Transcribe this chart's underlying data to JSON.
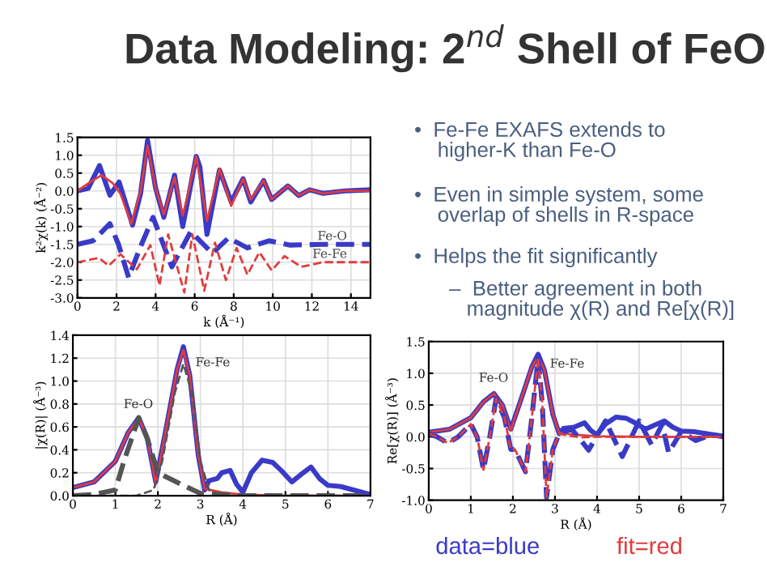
{
  "chart_data": [
    {
      "type": "line",
      "xlabel": "k (Å⁻¹)",
      "ylabel": "k²χ(k) (Å⁻²)",
      "xlim": [
        0,
        15
      ],
      "xticks": [
        0,
        2,
        4,
        6,
        8,
        10,
        12,
        14
      ],
      "ylim": [
        -3.0,
        1.5
      ],
      "yticks": [
        {
          "value": 1.5,
          "label": "1.5"
        },
        {
          "value": 1.0,
          "label": "1.0"
        },
        {
          "value": 0.5,
          "label": "0.5"
        },
        {
          "value": 0.0,
          "label": "0.0"
        },
        {
          "value": -0.5,
          "label": "-0.5"
        },
        {
          "value": -1.0,
          "label": "-1.0"
        },
        {
          "value": -1.5,
          "label": "-1.5"
        },
        {
          "value": -2.0,
          "label": "-2.0"
        },
        {
          "value": -2.5,
          "label": "-2.5"
        },
        {
          "value": -3.0,
          "label": "-3.0"
        }
      ],
      "grid": true,
      "series": [
        {
          "color": "#3a3ac8",
          "line_style": "solid",
          "x": [
            0,
            0.55,
            1.13,
            1.66,
            2.13,
            2.82,
            3.23,
            3.59,
            4.0,
            4.42,
            4.97,
            5.39,
            5.66,
            6.08,
            6.27,
            6.63,
            7.27,
            7.87,
            8.48,
            8.87,
            9.53,
            9.94,
            10.77,
            11.33,
            11.88,
            12.57,
            13.67,
            14.97
          ],
          "values": [
            0,
            0.07,
            0.71,
            -0.12,
            0.25,
            -0.96,
            -0.08,
            1.42,
            0.08,
            -0.74,
            0.44,
            -1.0,
            -0.24,
            0.97,
            0.67,
            -1.22,
            0.59,
            -0.31,
            0.34,
            -0.31,
            0.29,
            -0.24,
            0.14,
            -0.13,
            0.03,
            -0.07,
            0,
            0.03
          ]
        },
        {
          "color": "#e03c3c",
          "line_style": "solid",
          "x": [
            0,
            0.8,
            1.24,
            1.8,
            2.2,
            2.76,
            3.23,
            3.59,
            4.0,
            4.42,
            4.97,
            5.39,
            5.66,
            6.08,
            6.63,
            7.27,
            7.87,
            8.48,
            8.87,
            9.53,
            9.94,
            10.77,
            11.33,
            11.88,
            12.57,
            13.67,
            14.97
          ],
          "values": [
            0,
            0.3,
            0.44,
            0.22,
            -0.08,
            -0.92,
            0,
            1.27,
            0.08,
            -0.66,
            0.38,
            -0.69,
            -0.08,
            0.97,
            -0.84,
            0.62,
            -0.42,
            0.34,
            -0.24,
            0.29,
            -0.24,
            0.14,
            -0.13,
            0.03,
            -0.07,
            0,
            0
          ]
        },
        {
          "name": "Fe-O",
          "color": "#3a3ac8",
          "line_style": "dashed",
          "x": [
            0,
            0.8,
            1.66,
            2.1,
            2.62,
            3.2,
            3.87,
            4.83,
            5.8,
            6.9,
            7.73,
            8.7,
            9.8,
            10.9,
            12.5,
            15.0
          ],
          "values": [
            -1.5,
            -1.4,
            -0.92,
            -1.5,
            -2.43,
            -1.6,
            -0.74,
            -2.13,
            -1.14,
            -1.75,
            -1.32,
            -1.6,
            -1.4,
            -1.52,
            -1.5,
            -1.5
          ]
        },
        {
          "name": "Fe-Fe",
          "color": "#e03c3c",
          "line_style": "dashed",
          "x": [
            0,
            1.1,
            1.6,
            2.2,
            3.04,
            3.73,
            4.2,
            4.64,
            5.47,
            5.88,
            6.49,
            7.04,
            7.6,
            8.15,
            8.7,
            9.31,
            9.94,
            10.6,
            11.46,
            12.57,
            15.0
          ],
          "values": [
            -2.0,
            -1.88,
            -2.1,
            -1.78,
            -2.2,
            -1.52,
            -2.65,
            -1.22,
            -2.85,
            -1.22,
            -2.8,
            -1.45,
            -2.5,
            -1.6,
            -2.35,
            -1.72,
            -2.23,
            -1.83,
            -2.13,
            -2.0,
            -2.0
          ]
        }
      ]
    },
    {
      "type": "line",
      "xlabel": "R (Å)",
      "ylabel": "|χ(R)| (Å⁻³)",
      "xlim": [
        0,
        7
      ],
      "xticks": [
        0,
        1,
        2,
        3,
        4,
        5,
        6,
        7
      ],
      "ylim": [
        0,
        1.4
      ],
      "yticks": [
        {
          "value": 0.0,
          "label": "0.0"
        },
        {
          "value": 0.2,
          "label": "0.2"
        },
        {
          "value": 0.4,
          "label": "0.4"
        },
        {
          "value": 0.6,
          "label": "0.6"
        },
        {
          "value": 0.8,
          "label": "0.8"
        },
        {
          "value": 1.0,
          "label": "1.0"
        },
        {
          "value": 1.2,
          "label": "1.2"
        },
        {
          "value": 1.4,
          "label": "1.4"
        }
      ],
      "grid": true,
      "annotations": [
        "Fe-O",
        "Fe-Fe"
      ],
      "series": [
        {
          "color": "#3a3ac8",
          "line_style": "solid",
          "x": [
            0,
            0.5,
            1.0,
            1.3,
            1.55,
            1.75,
            1.95,
            2.2,
            2.45,
            2.6,
            2.75,
            2.95,
            3.1,
            3.2,
            3.4,
            3.5,
            3.7,
            3.85,
            4.0,
            4.2,
            4.45,
            4.7,
            4.9,
            5.15,
            5.35,
            5.6,
            5.8,
            6.0,
            6.3,
            6.6,
            7.0
          ],
          "values": [
            0.07,
            0.12,
            0.3,
            0.55,
            0.68,
            0.5,
            0.12,
            0.6,
            1.1,
            1.3,
            1.05,
            0.35,
            0.05,
            0.13,
            0.15,
            0.2,
            0.22,
            0.1,
            0.03,
            0.2,
            0.31,
            0.29,
            0.22,
            0.12,
            0.18,
            0.25,
            0.15,
            0.09,
            0.08,
            0.05,
            0.01
          ]
        },
        {
          "color": "#e03c3c",
          "line_style": "solid",
          "x": [
            0,
            0.5,
            1.0,
            1.3,
            1.55,
            1.75,
            1.95,
            2.2,
            2.45,
            2.6,
            2.75,
            2.95,
            3.1,
            3.5,
            4.0,
            5.0,
            7.0
          ],
          "values": [
            0.07,
            0.12,
            0.3,
            0.55,
            0.68,
            0.5,
            0.1,
            0.6,
            1.1,
            1.27,
            1.05,
            0.35,
            0.06,
            0.03,
            0.01,
            0,
            0
          ]
        },
        {
          "color": "#555555",
          "line_style": "dashed",
          "x": [
            0,
            0.5,
            1.0,
            1.2,
            1.55,
            1.75,
            2.0,
            2.6,
            3.0,
            4.0,
            7.0
          ],
          "values": [
            0,
            0.01,
            0.05,
            0.3,
            0.68,
            0.5,
            0.2,
            0.09,
            0.02,
            0,
            0
          ]
        },
        {
          "color": "#555555",
          "line_style": "dashed",
          "x": [
            0,
            1.5,
            1.9,
            2.1,
            2.4,
            2.6,
            2.8,
            3.0,
            3.2,
            3.5,
            7.0
          ],
          "values": [
            0,
            0,
            0.05,
            0.3,
            0.9,
            1.15,
            0.9,
            0.3,
            0.05,
            0,
            0
          ]
        }
      ]
    },
    {
      "type": "line",
      "xlabel": "R (Å)",
      "ylabel": "Re[χ(R)] (Å⁻³)",
      "xlim": [
        0,
        7
      ],
      "xticks": [
        0,
        1,
        2,
        3,
        4,
        5,
        6,
        7
      ],
      "ylim": [
        -1.0,
        1.5
      ],
      "yticks": [
        {
          "value": 1.5,
          "label": "1.5"
        },
        {
          "value": 1.0,
          "label": "1.0"
        },
        {
          "value": 0.5,
          "label": "0.5"
        },
        {
          "value": 0.0,
          "label": "0.0"
        },
        {
          "value": -0.5,
          "label": "-0.5"
        },
        {
          "value": -1.0,
          "label": "-1.0"
        }
      ],
      "grid": true,
      "annotations": [
        "data=blue",
        "fit=red",
        "Fe-O",
        "Fe-Fe"
      ],
      "series": [
        {
          "color": "#3a3ac8",
          "line_style": "solid",
          "x": [
            0,
            0.5,
            1.0,
            1.3,
            1.55,
            1.75,
            1.95,
            2.2,
            2.45,
            2.6,
            2.75,
            2.95,
            3.1,
            3.2,
            3.45,
            3.7,
            3.85,
            4.0,
            4.2,
            4.45,
            4.7,
            4.9,
            5.15,
            5.35,
            5.6,
            5.8,
            6.0,
            6.3,
            6.6,
            7.0
          ],
          "values": [
            0.07,
            0.12,
            0.3,
            0.55,
            0.68,
            0.5,
            0.12,
            0.6,
            1.1,
            1.3,
            1.05,
            0.35,
            0.05,
            0.13,
            0.15,
            0.22,
            0.1,
            0.03,
            0.2,
            0.31,
            0.29,
            0.22,
            0.12,
            0.18,
            0.25,
            0.15,
            0.09,
            0.08,
            0.05,
            0.01
          ]
        },
        {
          "color": "#e03c3c",
          "line_style": "solid",
          "x": [
            0,
            0.5,
            1.0,
            1.3,
            1.55,
            1.75,
            1.95,
            2.2,
            2.45,
            2.6,
            2.75,
            2.95,
            3.1,
            3.5,
            4.0,
            5.0,
            7.0
          ],
          "values": [
            0.07,
            0.12,
            0.3,
            0.55,
            0.68,
            0.5,
            0.1,
            0.6,
            1.1,
            1.27,
            1.05,
            0.35,
            0.06,
            0.03,
            0.01,
            0,
            0
          ]
        },
        {
          "color": "#3a3ac8",
          "line_style": "dashed",
          "x": [
            0,
            0.2,
            0.45,
            0.7,
            1.0,
            1.15,
            1.3,
            1.45,
            1.6,
            1.8,
            1.95,
            2.05,
            2.3,
            2.45,
            2.6,
            2.7,
            2.8,
            2.95,
            3.1,
            3.4,
            3.8,
            4.2,
            4.6,
            5.0,
            5.3,
            5.55,
            5.7,
            6.0,
            6.35,
            6.7,
            7.0
          ],
          "values": [
            0.05,
            0.0,
            -0.1,
            0.0,
            0.2,
            0.0,
            -0.52,
            0.0,
            0.6,
            0.3,
            -0.2,
            -0.2,
            -0.55,
            0.3,
            1.25,
            0.5,
            -0.95,
            -0.2,
            0.05,
            0.12,
            -0.21,
            0.25,
            -0.31,
            0.25,
            -0.13,
            0.2,
            -0.25,
            0.08,
            -0.06,
            0.03,
            0.0
          ]
        },
        {
          "color": "#e03c3c",
          "line_style": "dashed",
          "x": [
            0,
            0.2,
            0.45,
            0.7,
            1.0,
            1.15,
            1.3,
            1.45,
            1.6,
            1.8,
            1.95,
            2.05,
            2.3,
            2.45,
            2.6,
            2.7,
            2.8,
            2.95,
            3.1,
            3.3,
            3.6,
            4.0,
            7.0
          ],
          "values": [
            0.05,
            0.0,
            -0.1,
            0.0,
            0.2,
            0.0,
            -0.52,
            0.0,
            0.6,
            0.3,
            -0.2,
            -0.2,
            -0.55,
            0.3,
            1.25,
            0.5,
            -0.95,
            -0.2,
            0.05,
            0.02,
            -0.01,
            0,
            0
          ]
        }
      ]
    },
    {
      "type": "other",
      "title": "Data Modeling: 2$^{nd}$ Shell of FeO",
      "annotations": [
        "•  Fe-Fe EXAFS extends to\n    higher-K than Fe-O",
        "•  Even in simple system, some\n    overlap of shells in R-space",
        "•  Helps the fit significantly",
        "      –  Better agreement in both\n         magnitude χ(R) and Re[χ(R)]"
      ]
    }
  ]
}
